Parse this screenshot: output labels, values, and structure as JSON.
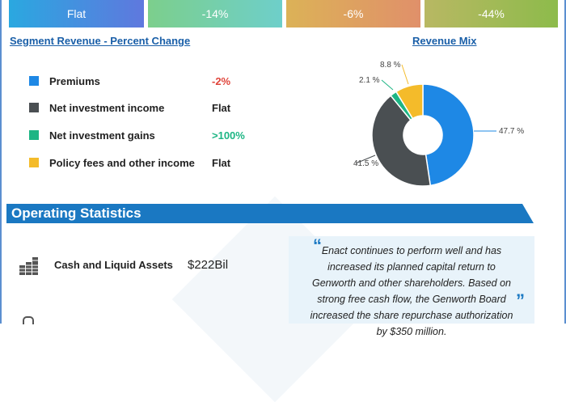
{
  "cards": [
    {
      "value": "Flat"
    },
    {
      "value": "-14%"
    },
    {
      "value": "-6%"
    },
    {
      "value": "-44%"
    }
  ],
  "segment_title": "Segment Revenue - Percent Change",
  "mix_title": "Revenue Mix",
  "segments": [
    {
      "label": "Premiums",
      "change": "-2%",
      "color": "#1e88e5",
      "change_color": "#e0443a"
    },
    {
      "label": "Net investment income",
      "change": "Flat",
      "color": "#4a4f52",
      "change_color": "#222222"
    },
    {
      "label": "Net investment gains",
      "change": ">100%",
      "color": "#1db584",
      "change_color": "#1db584"
    },
    {
      "label": "Policy fees and other income",
      "change": "Flat",
      "color": "#f4bb2a",
      "change_color": "#222222"
    }
  ],
  "chart_data": {
    "type": "pie",
    "donut": true,
    "categories": [
      "Premiums",
      "Net investment income",
      "Net investment gains",
      "Policy fees and other income"
    ],
    "values": [
      47.7,
      41.5,
      2.1,
      8.8
    ],
    "labels": [
      "47.7 %",
      "41.5 %",
      "2.1 %",
      "8.8 %"
    ],
    "colors": [
      "#1e88e5",
      "#4a4f52",
      "#1db584",
      "#f4bb2a"
    ]
  },
  "operating": {
    "title": "Operating Statistics",
    "stat_label": "Cash and Liquid Assets",
    "stat_value": "$222Bil",
    "quote": "Enact continues to perform well and has increased its planned capital return to Genworth and other shareholders. Based on strong free cash flow, the Genworth Board increased the share repurchase authorization by $350 million.",
    "open_quote": "“",
    "close_quote": "”"
  }
}
